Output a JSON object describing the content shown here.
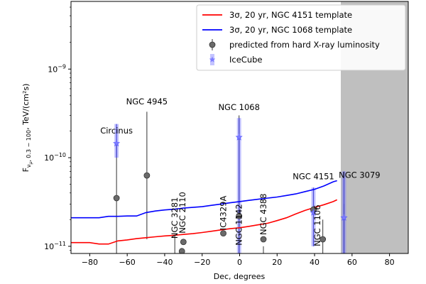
{
  "chart_data": {
    "type": "scatter",
    "xlabel": "Dec, degrees",
    "ylabel": "F_{ν_μ, 0.3 − 100}, TeV/(cm²s)",
    "ylabel_main": "F",
    "ylabel_sub": "ν",
    "ylabel_subsub": "μ",
    "ylabel_range": ", 0.3 − 100",
    "ylabel_units": ", TeV/(cm²s)",
    "xlim": [
      -90,
      90
    ],
    "ylim": [
      8.3e-12,
      5.8e-09
    ],
    "yscale": "log",
    "grid": false,
    "legend_position": "top-right",
    "x_ticks": [
      -80,
      -60,
      -40,
      -20,
      0,
      20,
      40,
      60,
      80
    ],
    "x_tick_labels": [
      "−80",
      "−60",
      "−40",
      "−20",
      "0",
      "20",
      "40",
      "60",
      "80"
    ],
    "y_ticks": [
      1e-11,
      1e-10,
      1e-09
    ],
    "y_tick_base": "10",
    "y_tick_exponents": [
      "−11",
      "−10",
      "−9"
    ],
    "excluded_region": {
      "xmin": 54,
      "xmax": 90,
      "color": "#bfbfbf"
    },
    "series": [
      {
        "name": "3σ, 20 yr, NGC 4151 template",
        "type": "line",
        "color": "#ff0000",
        "x": [
          -90,
          -85,
          -80,
          -75,
          -70,
          -65,
          -60,
          -55,
          -50,
          -45,
          -40,
          -35,
          -30,
          -25,
          -20,
          -15,
          -10,
          -5,
          0,
          5,
          10,
          15,
          20,
          25,
          30,
          35,
          40,
          45,
          50,
          52
        ],
        "y": [
          1.1e-11,
          1.1e-11,
          1.1e-11,
          1.06e-11,
          1.06e-11,
          1.15e-11,
          1.18e-11,
          1.22e-11,
          1.25e-11,
          1.28e-11,
          1.31e-11,
          1.33e-11,
          1.36e-11,
          1.39e-11,
          1.43e-11,
          1.48e-11,
          1.53e-11,
          1.58e-11,
          1.62e-11,
          1.68e-11,
          1.75e-11,
          1.82e-11,
          1.95e-11,
          2.1e-11,
          2.32e-11,
          2.55e-11,
          2.75e-11,
          2.95e-11,
          3.2e-11,
          3.35e-11
        ]
      },
      {
        "name": "3σ, 20 yr, NGC 1068 template",
        "type": "line",
        "color": "#0000ff",
        "x": [
          -90,
          -85,
          -80,
          -75,
          -70,
          -65,
          -60,
          -55,
          -50,
          -45,
          -40,
          -35,
          -30,
          -25,
          -20,
          -15,
          -10,
          -5,
          0,
          5,
          10,
          15,
          20,
          25,
          30,
          35,
          40,
          45,
          50,
          52
        ],
        "y": [
          2.1e-11,
          2.1e-11,
          2.1e-11,
          2.1e-11,
          2.18e-11,
          2.18e-11,
          2.2e-11,
          2.2e-11,
          2.4e-11,
          2.5e-11,
          2.57e-11,
          2.62e-11,
          2.7e-11,
          2.75e-11,
          2.8e-11,
          2.9e-11,
          3e-11,
          3.1e-11,
          3.2e-11,
          3.3e-11,
          3.4e-11,
          3.5e-11,
          3.6e-11,
          3.75e-11,
          3.9e-11,
          4.15e-11,
          4.4e-11,
          4.8e-11,
          5.35e-11,
          5.5e-11
        ]
      },
      {
        "name": "predicted from hard X-ray luminosity",
        "type": "scatter",
        "color": "#555555",
        "points": [
          {
            "x": -65.7,
            "y": 3.5e-11,
            "err": [
              8.3e-12,
              1.6e-10
            ]
          },
          {
            "x": -49.5,
            "y": 6.3e-11,
            "err": [
              1.2e-11,
              3.3e-10
            ]
          },
          {
            "x": -34.6,
            "y": 7e-12,
            "err": [
              7e-12,
              1.35e-11
            ]
          },
          {
            "x": -31.3,
            "y": 7e-12
          },
          {
            "x": -30.8,
            "y": 8.8e-12
          },
          {
            "x": -30,
            "y": 1.12e-11
          },
          {
            "x": -8.7,
            "y": 1.4e-11
          },
          {
            "x": -0.3,
            "y": 2.2e-11,
            "err": [
              8.3e-12,
              3e-10
            ]
          },
          {
            "x": 12.7,
            "y": 1.2e-11,
            "err": [
              8.3e-12,
              1e-11
            ]
          },
          {
            "x": 39.4,
            "y": 2.6e-11
          },
          {
            "x": 44.4,
            "y": 1.2e-11,
            "err": [
              8.3e-12,
              2e-11
            ]
          },
          {
            "x": 55.7,
            "y": 7e-12,
            "err": [
              8.3e-12,
              3e-11
            ]
          }
        ]
      },
      {
        "name": "IceCube",
        "type": "scatter",
        "color": "#7c7cff",
        "marker": "star",
        "points": [
          {
            "x": -65.7,
            "y": 1.45e-10,
            "err": [
              1e-10,
              2.4e-10
            ]
          },
          {
            "x": -0.3,
            "y": 1.7e-10,
            "err": [
              8.3e-12,
              2.8e-10
            ]
          },
          {
            "x": 39.4,
            "y": 2.4e-11,
            "err": [
              1e-11,
              4.6e-11
            ]
          },
          {
            "x": 55.7,
            "y": 2.1e-11,
            "err": [
              8.3e-12,
              7e-11
            ]
          }
        ]
      }
    ],
    "source_labels": [
      {
        "text": "Circinus",
        "x": -65.7,
        "y": 1.75e-10,
        "rotate": false
      },
      {
        "text": "NGC 4945",
        "x": -49.5,
        "y": 3.7e-10,
        "rotate": false
      },
      {
        "text": "NGC 1068",
        "x": -0.3,
        "y": 3.2e-10,
        "rotate": false
      },
      {
        "text": "NGC 4151",
        "x": 39.4,
        "y": 5.3e-11,
        "rotate": false
      },
      {
        "text": "NGC 3079",
        "x": 64,
        "y": 5.5e-11,
        "rotate": false
      },
      {
        "text": "NGC 3281",
        "x": -34.6,
        "y": 1.22e-11,
        "rotate": true
      },
      {
        "text": "NGC 2110",
        "x": -30.5,
        "y": 1.4e-11,
        "rotate": true
      },
      {
        "text": "IC4329A",
        "x": -8.7,
        "y": 1.52e-11,
        "rotate": true
      },
      {
        "text": "NGC 1142",
        "x": -0.3,
        "y": 1.02e-11,
        "rotate": true
      },
      {
        "text": "NGC 4388",
        "x": 12.7,
        "y": 1.34e-11,
        "rotate": true
      },
      {
        "text": "NGC 1106",
        "x": 41.5,
        "y": 1e-11,
        "rotate": true
      }
    ]
  },
  "legend": [
    {
      "label": "3σ, 20 yr, NGC 4151 template",
      "kind": "line",
      "color": "#ff0000"
    },
    {
      "label": "3σ, 20 yr, NGC 1068 template",
      "kind": "line",
      "color": "#0000ff"
    },
    {
      "label": "predicted from hard X-ray luminosity",
      "kind": "circle",
      "color": "#555555"
    },
    {
      "label": "IceCube",
      "kind": "star",
      "color": "#7c7cff"
    }
  ]
}
